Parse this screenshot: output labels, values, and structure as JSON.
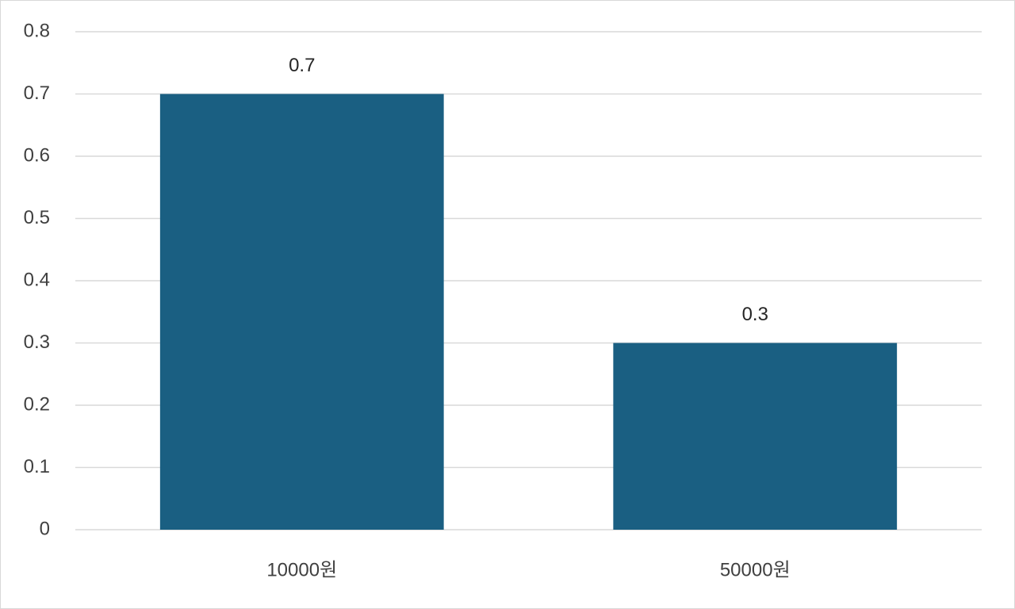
{
  "chart_data": {
    "type": "bar",
    "categories": [
      "10000원",
      "50000원"
    ],
    "values": [
      0.7,
      0.3
    ],
    "color": "#1a5f82",
    "ylim": [
      0,
      0.8
    ],
    "yticks": [
      0,
      0.1,
      0.2,
      0.3,
      0.4,
      0.5,
      0.6,
      0.7,
      0.8
    ],
    "grid": true,
    "data_labels": true
  }
}
